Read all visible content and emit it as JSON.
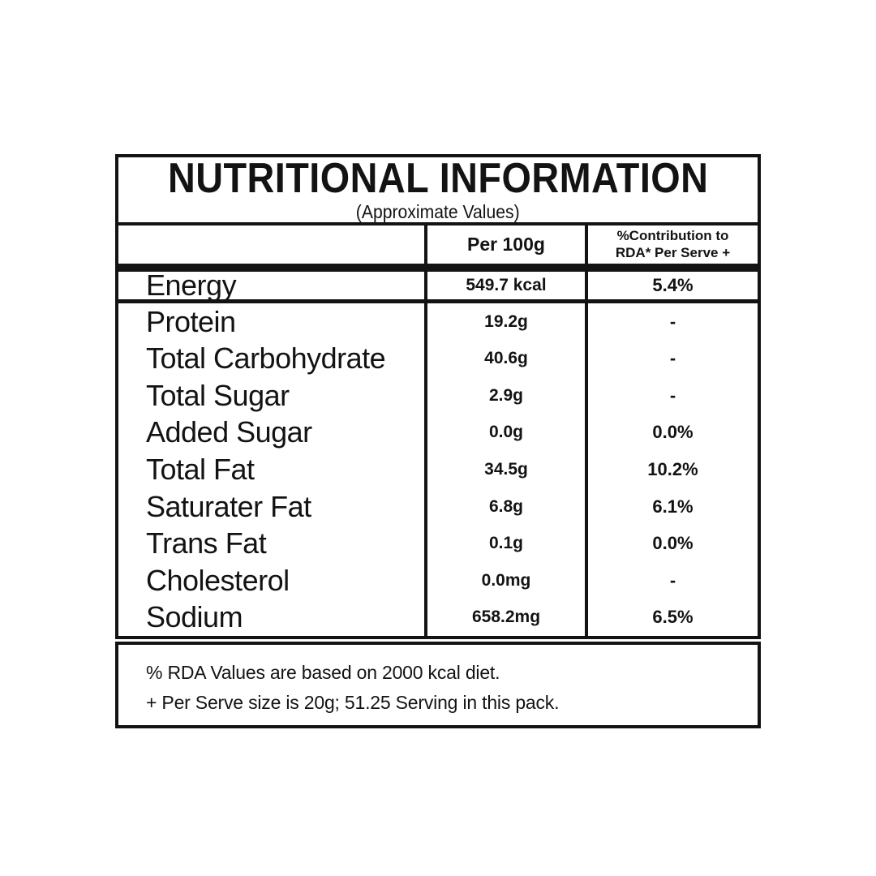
{
  "colors": {
    "ink": "#131313",
    "background": "#ffffff"
  },
  "table": {
    "title": "NUTRITIONAL INFORMATION",
    "subtitle": "(Approximate Values)",
    "header": {
      "nutrient_col": "",
      "per_100g_col": "Per 100g",
      "rda_col_line1": "%Contribution to",
      "rda_col_line2": "RDA* Per Serve +"
    },
    "energy_row": {
      "label": "Energy",
      "per_100g": "549.7 kcal",
      "rda": "5.4%"
    },
    "rows": [
      {
        "label": "Protein",
        "per_100g": "19.2g",
        "rda": "-"
      },
      {
        "label": "Total Carbohydrate",
        "per_100g": "40.6g",
        "rda": "-"
      },
      {
        "label": "Total Sugar",
        "per_100g": "2.9g",
        "rda": "-"
      },
      {
        "label": "Added Sugar",
        "per_100g": "0.0g",
        "rda": "0.0%"
      },
      {
        "label": "Total Fat",
        "per_100g": "34.5g",
        "rda": "10.2%"
      },
      {
        "label": "Saturater Fat",
        "per_100g": "6.8g",
        "rda": "6.1%"
      },
      {
        "label": "Trans Fat",
        "per_100g": "0.1g",
        "rda": "0.0%"
      },
      {
        "label": "Cholesterol",
        "per_100g": "0.0mg",
        "rda": "-"
      },
      {
        "label": "Sodium",
        "per_100g": "658.2mg",
        "rda": "6.5%"
      }
    ],
    "footnotes": [
      "% RDA Values are based on 2000 kcal diet.",
      "+ Per Serve size is 20g; 51.25 Serving in this pack."
    ]
  }
}
